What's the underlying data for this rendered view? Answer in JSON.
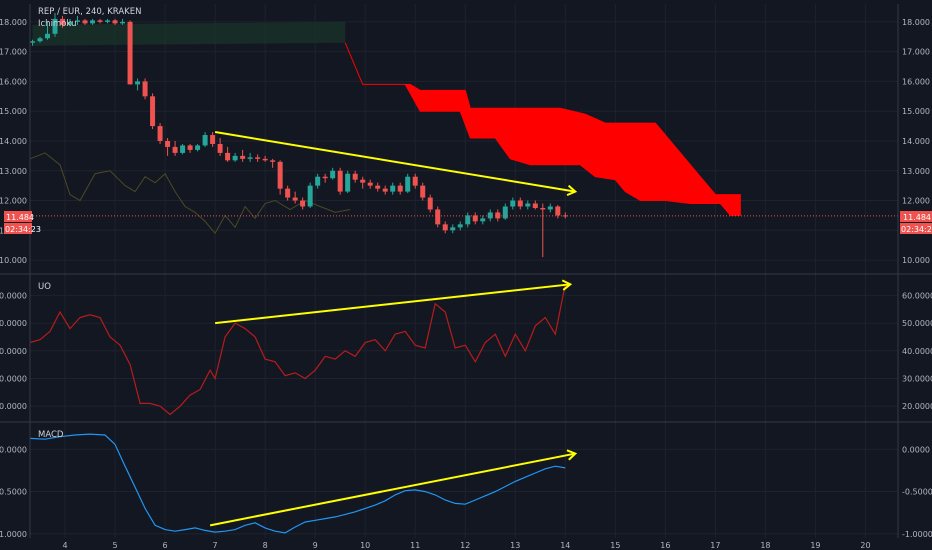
{
  "header": {
    "symbol_line": "REP / EUR, 240, KRAKEN",
    "indicator_label": "Ichimoku"
  },
  "price_badge": {
    "value": "11.484",
    "timer": "02:34:23"
  },
  "colors": {
    "background": "#131722",
    "grid": "#1e222d",
    "up": "#26a69a",
    "down": "#ef5350",
    "cloud": "#ff0000",
    "trendline": "#ffff00",
    "uo_line": "#b71c1c",
    "macd_line": "#2196f3",
    "lagging_span": "#4a4a24",
    "price_line": "#ef5350"
  },
  "chart_data": [
    {
      "type": "candlestick",
      "title": "REP / EUR, 240, KRAKEN",
      "x_ticks": [
        "4",
        "5",
        "6",
        "7",
        "8",
        "9",
        "10",
        "11",
        "12",
        "13",
        "14",
        "15",
        "16",
        "17",
        "18",
        "19",
        "20"
      ],
      "x_range": [
        3.3,
        20.65
      ],
      "y_ticks": [
        "10.000",
        "11.000",
        "12.000",
        "13.000",
        "14.000",
        "15.000",
        "16.000",
        "17.000",
        "18.000"
      ],
      "y_range": [
        9.6,
        18.6
      ],
      "last_price": 11.484,
      "candles": [
        {
          "x": 3.35,
          "o": 17.3,
          "h": 17.4,
          "l": 17.2,
          "c": 17.35
        },
        {
          "x": 3.5,
          "o": 17.35,
          "h": 17.5,
          "l": 17.3,
          "c": 17.45
        },
        {
          "x": 3.65,
          "o": 17.45,
          "h": 18.0,
          "l": 17.4,
          "c": 17.6
        },
        {
          "x": 3.8,
          "o": 17.6,
          "h": 18.3,
          "l": 17.5,
          "c": 18.1
        },
        {
          "x": 3.95,
          "o": 18.1,
          "h": 18.2,
          "l": 17.8,
          "c": 17.9
        },
        {
          "x": 4.1,
          "o": 17.9,
          "h": 18.1,
          "l": 17.85,
          "c": 18.0
        },
        {
          "x": 4.25,
          "o": 18.0,
          "h": 18.2,
          "l": 17.9,
          "c": 18.05
        },
        {
          "x": 4.4,
          "o": 18.05,
          "h": 18.1,
          "l": 17.9,
          "c": 17.95
        },
        {
          "x": 4.55,
          "o": 17.95,
          "h": 18.1,
          "l": 17.9,
          "c": 18.05
        },
        {
          "x": 4.7,
          "o": 18.05,
          "h": 18.1,
          "l": 17.95,
          "c": 18.0
        },
        {
          "x": 4.85,
          "o": 18.0,
          "h": 18.1,
          "l": 17.95,
          "c": 18.05
        },
        {
          "x": 5.0,
          "o": 18.05,
          "h": 18.1,
          "l": 17.9,
          "c": 17.95
        },
        {
          "x": 5.15,
          "o": 17.95,
          "h": 18.1,
          "l": 17.9,
          "c": 18.0
        },
        {
          "x": 5.3,
          "o": 18.0,
          "h": 18.05,
          "l": 15.9,
          "c": 15.9
        },
        {
          "x": 5.45,
          "o": 15.9,
          "h": 16.1,
          "l": 15.7,
          "c": 16.0
        },
        {
          "x": 5.6,
          "o": 16.0,
          "h": 16.1,
          "l": 15.4,
          "c": 15.5
        },
        {
          "x": 5.75,
          "o": 15.5,
          "h": 15.6,
          "l": 14.4,
          "c": 14.5
        },
        {
          "x": 5.9,
          "o": 14.5,
          "h": 14.6,
          "l": 13.9,
          "c": 14.0
        },
        {
          "x": 6.05,
          "o": 14.0,
          "h": 14.1,
          "l": 13.5,
          "c": 13.8
        },
        {
          "x": 6.2,
          "o": 13.8,
          "h": 14.0,
          "l": 13.5,
          "c": 13.6
        },
        {
          "x": 6.35,
          "o": 13.6,
          "h": 13.9,
          "l": 13.55,
          "c": 13.85
        },
        {
          "x": 6.5,
          "o": 13.85,
          "h": 13.9,
          "l": 13.6,
          "c": 13.7
        },
        {
          "x": 6.65,
          "o": 13.7,
          "h": 13.9,
          "l": 13.65,
          "c": 13.85
        },
        {
          "x": 6.8,
          "o": 13.85,
          "h": 14.3,
          "l": 13.8,
          "c": 14.2
        },
        {
          "x": 6.95,
          "o": 14.2,
          "h": 14.3,
          "l": 13.8,
          "c": 13.9
        },
        {
          "x": 7.1,
          "o": 13.9,
          "h": 14.1,
          "l": 13.5,
          "c": 13.6
        },
        {
          "x": 7.25,
          "o": 13.6,
          "h": 13.8,
          "l": 13.3,
          "c": 13.35
        },
        {
          "x": 7.4,
          "o": 13.35,
          "h": 13.6,
          "l": 13.3,
          "c": 13.5
        },
        {
          "x": 7.55,
          "o": 13.5,
          "h": 13.7,
          "l": 13.3,
          "c": 13.4
        },
        {
          "x": 7.7,
          "o": 13.4,
          "h": 13.6,
          "l": 13.3,
          "c": 13.45
        },
        {
          "x": 7.85,
          "o": 13.45,
          "h": 13.55,
          "l": 13.3,
          "c": 13.4
        },
        {
          "x": 8.0,
          "o": 13.4,
          "h": 13.5,
          "l": 13.3,
          "c": 13.35
        },
        {
          "x": 8.15,
          "o": 13.35,
          "h": 13.4,
          "l": 13.1,
          "c": 13.3
        },
        {
          "x": 8.3,
          "o": 13.3,
          "h": 13.35,
          "l": 12.2,
          "c": 12.4
        },
        {
          "x": 8.45,
          "o": 12.4,
          "h": 12.5,
          "l": 12.0,
          "c": 12.1
        },
        {
          "x": 8.6,
          "o": 12.1,
          "h": 12.3,
          "l": 11.9,
          "c": 12.0
        },
        {
          "x": 8.75,
          "o": 12.0,
          "h": 12.1,
          "l": 11.7,
          "c": 11.8
        },
        {
          "x": 8.9,
          "o": 11.8,
          "h": 12.6,
          "l": 11.75,
          "c": 12.5
        },
        {
          "x": 9.05,
          "o": 12.5,
          "h": 12.9,
          "l": 12.4,
          "c": 12.8
        },
        {
          "x": 9.2,
          "o": 12.8,
          "h": 12.9,
          "l": 12.6,
          "c": 12.75
        },
        {
          "x": 9.35,
          "o": 12.75,
          "h": 13.1,
          "l": 12.7,
          "c": 13.0
        },
        {
          "x": 9.5,
          "o": 13.0,
          "h": 13.1,
          "l": 12.2,
          "c": 12.3
        },
        {
          "x": 9.65,
          "o": 12.3,
          "h": 13.0,
          "l": 12.25,
          "c": 12.9
        },
        {
          "x": 9.8,
          "o": 12.9,
          "h": 13.0,
          "l": 12.6,
          "c": 12.7
        },
        {
          "x": 9.95,
          "o": 12.7,
          "h": 12.8,
          "l": 12.4,
          "c": 12.6
        },
        {
          "x": 10.1,
          "o": 12.6,
          "h": 12.7,
          "l": 12.4,
          "c": 12.5
        },
        {
          "x": 10.25,
          "o": 12.5,
          "h": 12.6,
          "l": 12.3,
          "c": 12.4
        },
        {
          "x": 10.4,
          "o": 12.4,
          "h": 12.5,
          "l": 12.2,
          "c": 12.3
        },
        {
          "x": 10.55,
          "o": 12.3,
          "h": 12.6,
          "l": 12.2,
          "c": 12.5
        },
        {
          "x": 10.7,
          "o": 12.5,
          "h": 12.6,
          "l": 12.2,
          "c": 12.3
        },
        {
          "x": 10.85,
          "o": 12.3,
          "h": 12.9,
          "l": 12.25,
          "c": 12.8
        },
        {
          "x": 11.0,
          "o": 12.8,
          "h": 12.9,
          "l": 12.4,
          "c": 12.5
        },
        {
          "x": 11.15,
          "o": 12.5,
          "h": 12.6,
          "l": 12.0,
          "c": 12.1
        },
        {
          "x": 11.3,
          "o": 12.1,
          "h": 12.2,
          "l": 11.6,
          "c": 11.7
        },
        {
          "x": 11.45,
          "o": 11.7,
          "h": 11.8,
          "l": 11.1,
          "c": 11.2
        },
        {
          "x": 11.6,
          "o": 11.2,
          "h": 11.3,
          "l": 10.9,
          "c": 11.0
        },
        {
          "x": 11.75,
          "o": 11.0,
          "h": 11.2,
          "l": 10.9,
          "c": 11.1
        },
        {
          "x": 11.9,
          "o": 11.1,
          "h": 11.3,
          "l": 11.0,
          "c": 11.2
        },
        {
          "x": 12.05,
          "o": 11.2,
          "h": 11.6,
          "l": 11.1,
          "c": 11.5
        },
        {
          "x": 12.2,
          "o": 11.5,
          "h": 11.6,
          "l": 11.2,
          "c": 11.3
        },
        {
          "x": 12.35,
          "o": 11.3,
          "h": 11.5,
          "l": 11.2,
          "c": 11.4
        },
        {
          "x": 12.5,
          "o": 11.4,
          "h": 11.7,
          "l": 11.3,
          "c": 11.6
        },
        {
          "x": 12.65,
          "o": 11.6,
          "h": 11.7,
          "l": 11.3,
          "c": 11.4
        },
        {
          "x": 12.8,
          "o": 11.4,
          "h": 11.9,
          "l": 11.35,
          "c": 11.8
        },
        {
          "x": 12.95,
          "o": 11.8,
          "h": 12.1,
          "l": 11.7,
          "c": 12.0
        },
        {
          "x": 13.1,
          "o": 12.0,
          "h": 12.1,
          "l": 11.7,
          "c": 11.8
        },
        {
          "x": 13.25,
          "o": 11.8,
          "h": 12.0,
          "l": 11.7,
          "c": 11.9
        },
        {
          "x": 13.4,
          "o": 11.9,
          "h": 12.0,
          "l": 11.7,
          "c": 11.75
        },
        {
          "x": 13.55,
          "o": 11.75,
          "h": 11.9,
          "l": 10.1,
          "c": 11.7
        },
        {
          "x": 13.7,
          "o": 11.7,
          "h": 11.9,
          "l": 11.6,
          "c": 11.8
        },
        {
          "x": 13.85,
          "o": 11.8,
          "h": 11.85,
          "l": 11.4,
          "c": 11.5
        },
        {
          "x": 14.0,
          "o": 11.5,
          "h": 11.6,
          "l": 11.4,
          "c": 11.484
        }
      ]
    },
    {
      "type": "line",
      "title": "UO",
      "y_ticks": [
        "20.0000",
        "30.0000",
        "40.0000",
        "50.0000",
        "60.0000"
      ],
      "y_range": [
        15,
        67
      ],
      "x": [
        3.3,
        3.5,
        3.7,
        3.9,
        4.1,
        4.3,
        4.5,
        4.7,
        4.9,
        5.1,
        5.3,
        5.5,
        5.7,
        5.9,
        6.1,
        6.3,
        6.5,
        6.7,
        6.9,
        7.0,
        7.2,
        7.4,
        7.6,
        7.8,
        8.0,
        8.2,
        8.4,
        8.6,
        8.8,
        9.0,
        9.2,
        9.4,
        9.6,
        9.8,
        10.0,
        10.2,
        10.4,
        10.6,
        10.8,
        11.0,
        11.2,
        11.4,
        11.6,
        11.8,
        12.0,
        12.2,
        12.4,
        12.6,
        12.8,
        13.0,
        13.2,
        13.4,
        13.6,
        13.8,
        14.0
      ],
      "values": [
        43,
        44,
        47,
        54,
        48,
        52,
        53,
        52,
        45,
        42,
        35,
        21,
        21,
        20,
        17,
        20,
        24,
        26,
        33,
        30,
        45,
        50,
        48,
        45,
        37,
        36,
        31,
        32,
        30,
        33,
        38,
        37,
        40,
        38,
        43,
        44,
        40,
        46,
        47,
        42,
        41,
        57,
        54,
        41,
        42,
        36,
        43,
        46,
        38,
        46,
        40,
        49,
        52,
        46,
        64
      ],
      "trendline": {
        "x1": 7.0,
        "y1": 50,
        "x2": 14.1,
        "y2": 64
      }
    },
    {
      "type": "line",
      "title": "MACD",
      "y_ticks": [
        "0.0000",
        "-0.5000",
        "-1.0000"
      ],
      "y_range": [
        -1.05,
        0.3
      ],
      "x": [
        3.3,
        3.6,
        3.9,
        4.2,
        4.5,
        4.8,
        5.0,
        5.2,
        5.4,
        5.6,
        5.8,
        6.0,
        6.2,
        6.4,
        6.6,
        6.8,
        7.0,
        7.2,
        7.4,
        7.6,
        7.8,
        8.0,
        8.2,
        8.4,
        8.6,
        8.8,
        9.0,
        9.2,
        9.4,
        9.6,
        9.8,
        10.0,
        10.2,
        10.4,
        10.6,
        10.8,
        11.0,
        11.2,
        11.4,
        11.6,
        11.8,
        12.0,
        12.2,
        12.4,
        12.6,
        12.8,
        13.0,
        13.2,
        13.4,
        13.6,
        13.8,
        14.0
      ],
      "values": [
        0.13,
        0.12,
        0.15,
        0.17,
        0.18,
        0.17,
        0.06,
        -0.2,
        -0.45,
        -0.7,
        -0.9,
        -0.95,
        -0.97,
        -0.95,
        -0.93,
        -0.96,
        -0.98,
        -0.97,
        -0.95,
        -0.9,
        -0.87,
        -0.93,
        -0.97,
        -0.99,
        -0.92,
        -0.86,
        -0.84,
        -0.82,
        -0.8,
        -0.77,
        -0.74,
        -0.7,
        -0.66,
        -0.61,
        -0.54,
        -0.49,
        -0.48,
        -0.5,
        -0.54,
        -0.6,
        -0.64,
        -0.65,
        -0.6,
        -0.55,
        -0.5,
        -0.44,
        -0.38,
        -0.33,
        -0.28,
        -0.23,
        -0.2,
        -0.22
      ],
      "trendline": {
        "x1": 6.9,
        "y1": -0.9,
        "x2": 14.2,
        "y2": -0.05
      }
    }
  ]
}
